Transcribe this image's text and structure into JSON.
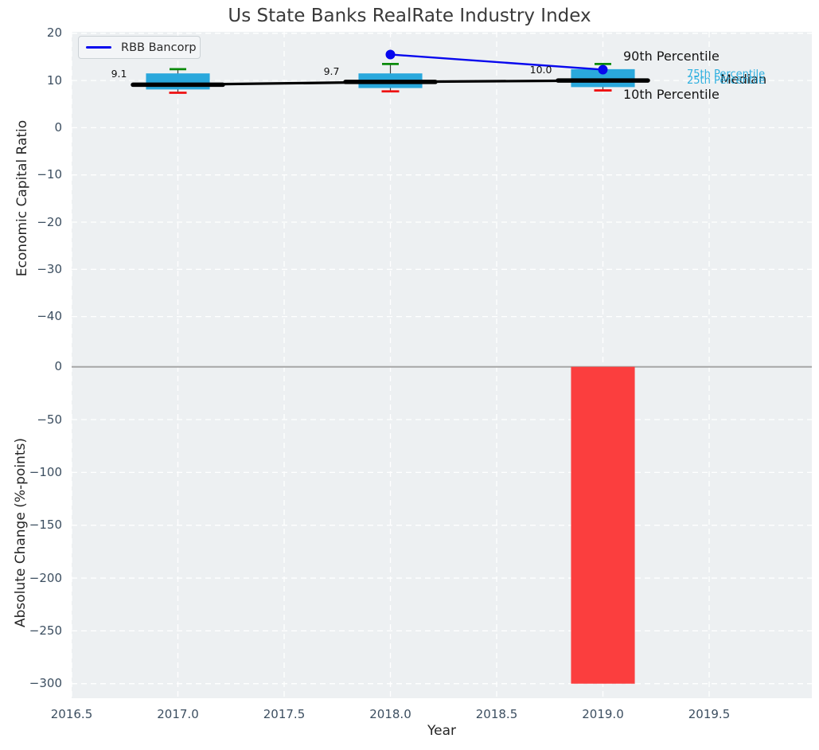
{
  "title": "Us State Banks RealRate Industry Index",
  "legend": {
    "label": "RBB Bancorp"
  },
  "colors": {
    "plot_bg": "#edf0f2",
    "grid": "#ffffff",
    "tick_text": "#3c4e60",
    "box_fill": "#2aa8dc",
    "p90_cap": "#0a8a0a",
    "p10_cap": "#ee1111",
    "median_line": "#000000",
    "rbb_line": "#0707ee",
    "bar_fill": "#fb3e3e",
    "zero_line": "#a6a6a6",
    "percentile_text_cyan": "#2fb0e0"
  },
  "top_chart": {
    "ylabel": "Economic Capital Ratio",
    "ytick_labels": [
      "20",
      "10",
      "0",
      "−10",
      "−20",
      "−30",
      "−40"
    ],
    "ytick_values": [
      20,
      10,
      0,
      -10,
      -20,
      -30,
      -40
    ],
    "percentile_labels": {
      "p90": "90th Percentile",
      "p75": "75th Percentile",
      "p25": "25th Percentile",
      "median": "Median",
      "p10": "10th Percentile"
    },
    "median_annotations": [
      "9.1",
      "9.7",
      "10.0"
    ]
  },
  "bottom_chart": {
    "ylabel": "Absolute Change (%-points)",
    "xlabel": "Year",
    "ytick_labels": [
      "0",
      "−50",
      "−100",
      "−150",
      "−200",
      "−250",
      "−300"
    ],
    "ytick_values": [
      0,
      -50,
      -100,
      -150,
      -200,
      -250,
      -300
    ],
    "xtick_labels": [
      "2016.5",
      "2017.0",
      "2017.5",
      "2018.0",
      "2018.5",
      "2019.0",
      "2019.5"
    ],
    "xtick_values": [
      2016.5,
      2017.0,
      2017.5,
      2018.0,
      2018.5,
      2019.0,
      2019.5
    ]
  },
  "chart_data": [
    {
      "type": "line",
      "subtype": "boxplot-with-line",
      "title": "Us State Banks RealRate Industry Index",
      "ylabel": "Economic Capital Ratio",
      "x": [
        2017,
        2018,
        2019
      ],
      "series": [
        {
          "name": "RBB Bancorp",
          "x": [
            2018,
            2019
          ],
          "values": [
            15.5,
            12.3
          ],
          "color": "#0707ee",
          "marker": "circle"
        },
        {
          "name": "Median",
          "x": [
            2017,
            2018,
            2019
          ],
          "values": [
            9.1,
            9.7,
            10.0
          ],
          "color": "#000000"
        }
      ],
      "box_stats": [
        {
          "x": 2017,
          "p10": 7.4,
          "p25": 8.1,
          "median": 9.1,
          "p75": 11.5,
          "p90": 12.4
        },
        {
          "x": 2018,
          "p10": 7.7,
          "p25": 8.4,
          "median": 9.7,
          "p75": 11.5,
          "p90": 13.5
        },
        {
          "x": 2019,
          "p10": 7.9,
          "p25": 8.6,
          "median": 10.0,
          "p75": 12.4,
          "p90": 13.5
        }
      ],
      "box_width": 0.3,
      "yticks": [
        20,
        10,
        0,
        -10,
        -20,
        -30,
        -40
      ],
      "ylim": [
        -50,
        20.3
      ],
      "legend_position": "upper left",
      "grid": true
    },
    {
      "type": "bar",
      "ylabel": "Absolute Change (%-points)",
      "xlabel": "Year",
      "x": [
        2019
      ],
      "values": [
        -300
      ],
      "bar_width": 0.3,
      "yticks": [
        0,
        -50,
        -100,
        -150,
        -200,
        -250,
        -300
      ],
      "xticks": [
        2016.5,
        2017.0,
        2017.5,
        2018.0,
        2018.5,
        2019.0,
        2019.5
      ],
      "xlim": [
        2016.5,
        19.99
      ],
      "ylim": [
        -314,
        2.8
      ],
      "grid": true
    }
  ]
}
